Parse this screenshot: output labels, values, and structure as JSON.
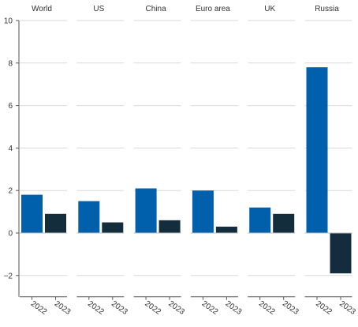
{
  "chart_data": {
    "type": "bar",
    "layout": "small-multiples",
    "grid": true,
    "legend": "none",
    "ylim": [
      -3,
      10
    ],
    "yticks": [
      10,
      8,
      6,
      4,
      2,
      0,
      -2
    ],
    "ytick_labels": [
      "10",
      "8",
      "6",
      "4",
      "2",
      "0",
      "−2"
    ],
    "categories": [
      "2022",
      "2023"
    ],
    "colors": {
      "2022": "#0060ac",
      "2023": "#142d3c"
    },
    "panels": [
      {
        "title": "World",
        "values": [
          1.8,
          0.9
        ]
      },
      {
        "title": "US",
        "values": [
          1.5,
          0.5
        ]
      },
      {
        "title": "China",
        "values": [
          2.1,
          0.6
        ]
      },
      {
        "title": "Euro area",
        "values": [
          2.0,
          0.3
        ]
      },
      {
        "title": "UK",
        "values": [
          1.2,
          0.9
        ]
      },
      {
        "title": "Russia",
        "values": [
          7.8,
          -1.9
        ]
      }
    ]
  }
}
